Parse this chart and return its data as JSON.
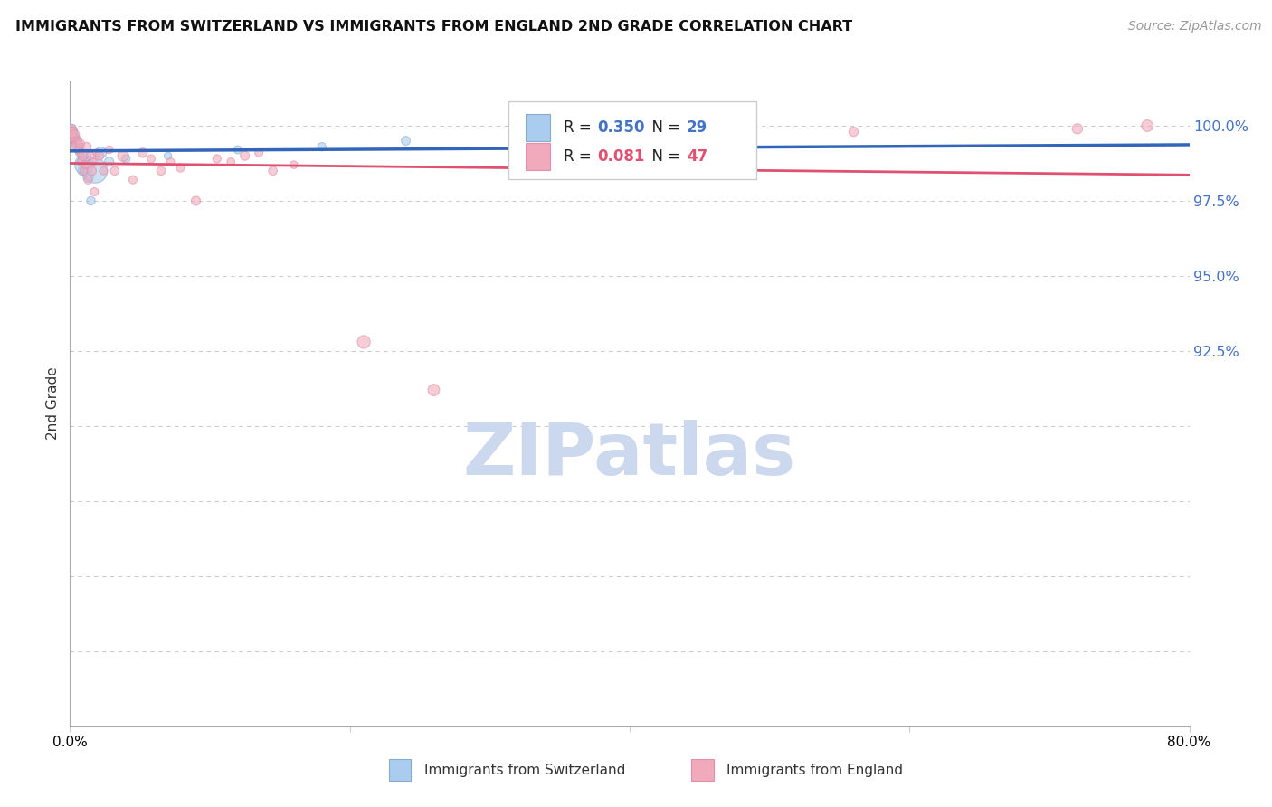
{
  "title": "IMMIGRANTS FROM SWITZERLAND VS IMMIGRANTS FROM ENGLAND 2ND GRADE CORRELATION CHART",
  "source": "Source: ZipAtlas.com",
  "ylabel": "2nd Grade",
  "xlim": [
    0.0,
    80.0
  ],
  "ylim": [
    80.0,
    101.5
  ],
  "ytick_vals": [
    100.0,
    97.5,
    95.0,
    92.5
  ],
  "ytick_labels": [
    "100.0%",
    "97.5%",
    "95.0%",
    "92.5%"
  ],
  "grid_lines": [
    100.0,
    97.5,
    95.0,
    92.5,
    90.0,
    87.5,
    85.0,
    82.5
  ],
  "xtick_vals": [
    0,
    20,
    40,
    60,
    80
  ],
  "xtick_labels": [
    "0.0%",
    "",
    "",
    "",
    "80.0%"
  ],
  "blue_fill": "#aaccee",
  "blue_edge": "#88aacc",
  "pink_fill": "#f0aabc",
  "pink_edge": "#e090a8",
  "blue_line_color": "#3366bb",
  "pink_line_color": "#e05070",
  "axis_tick_color": "#4472c4",
  "watermark_color": "#ccd8ee",
  "legend_label_blue": "Immigrants from Switzerland",
  "legend_label_pink": "Immigrants from England",
  "R_blue": "0.350",
  "N_blue": "29",
  "R_pink": "0.081",
  "N_pink": "47",
  "sw_x": [
    0.1,
    0.15,
    0.18,
    0.22,
    0.25,
    0.28,
    0.32,
    0.38,
    0.42,
    0.48,
    0.52,
    0.58,
    0.62,
    0.68,
    0.72,
    0.8,
    0.9,
    1.0,
    1.1,
    1.3,
    1.5,
    1.8,
    2.2,
    2.8,
    4.0,
    7.0,
    12.0,
    18.0,
    24.0
  ],
  "sw_y": [
    99.8,
    99.9,
    99.7,
    99.8,
    99.6,
    99.7,
    99.5,
    99.6,
    99.4,
    99.5,
    99.3,
    99.2,
    99.4,
    99.1,
    99.3,
    98.8,
    98.5,
    98.7,
    99.0,
    98.3,
    97.5,
    98.5,
    99.1,
    98.8,
    98.9,
    99.0,
    99.2,
    99.3,
    99.5
  ],
  "sw_size": [
    60,
    50,
    45,
    55,
    40,
    45,
    40,
    50,
    35,
    45,
    50,
    40,
    35,
    40,
    45,
    50,
    55,
    220,
    80,
    70,
    45,
    380,
    80,
    55,
    45,
    35,
    40,
    45,
    50
  ],
  "en_x": [
    0.08,
    0.12,
    0.18,
    0.25,
    0.32,
    0.38,
    0.45,
    0.52,
    0.58,
    0.65,
    0.72,
    0.78,
    0.85,
    0.92,
    1.0,
    1.1,
    1.2,
    1.3,
    1.45,
    1.55,
    1.65,
    1.75,
    1.9,
    2.1,
    2.4,
    2.8,
    3.2,
    3.8,
    4.5,
    5.2,
    5.8,
    6.5,
    7.2,
    7.9,
    9.0,
    10.5,
    11.5,
    12.5,
    13.5,
    14.5,
    16.0,
    21.0,
    26.0,
    32.0,
    56.0,
    72.0,
    77.0
  ],
  "en_y": [
    99.9,
    99.7,
    99.8,
    99.6,
    99.7,
    99.5,
    99.4,
    99.3,
    99.5,
    99.2,
    99.4,
    99.1,
    98.8,
    99.0,
    98.5,
    98.7,
    99.3,
    98.2,
    99.0,
    98.5,
    98.8,
    97.8,
    99.1,
    99.0,
    98.5,
    99.2,
    98.5,
    99.0,
    98.2,
    99.1,
    98.9,
    98.5,
    98.8,
    98.6,
    97.5,
    98.9,
    98.8,
    99.0,
    99.1,
    98.5,
    98.7,
    92.8,
    91.2,
    98.8,
    99.8,
    99.9,
    100.0
  ],
  "en_size": [
    55,
    45,
    55,
    50,
    65,
    40,
    45,
    80,
    38,
    45,
    55,
    35,
    45,
    60,
    45,
    40,
    50,
    45,
    42,
    55,
    38,
    42,
    35,
    50,
    42,
    38,
    48,
    80,
    42,
    55,
    42,
    48,
    38,
    45,
    52,
    45,
    38,
    52,
    42,
    48,
    38,
    105,
    85,
    65,
    55,
    65,
    85
  ]
}
